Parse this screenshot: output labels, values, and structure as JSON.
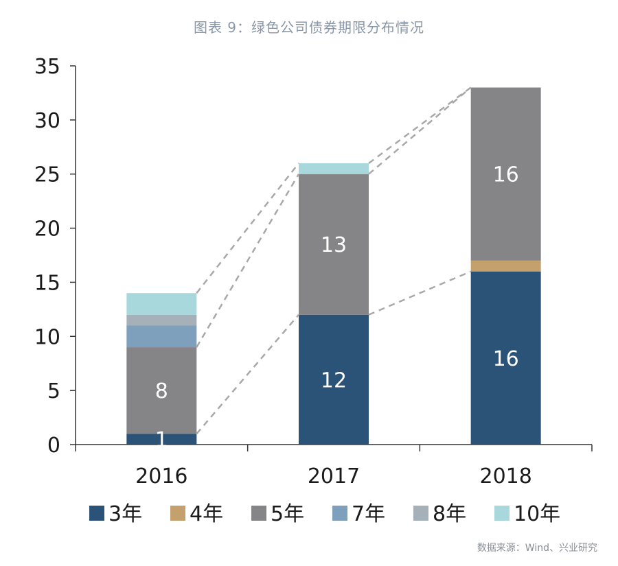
{
  "title": "图表 9：绿色公司债券期限分布情况",
  "source": "数据来源：Wind、兴业研究",
  "colors": {
    "3年": "#2b5377",
    "4年": "#c4a06c",
    "5年": "#858588",
    "7年": "#7ea0bd",
    "8年": "#a6b0b8",
    "10年": "#a9d8dc",
    "connector": "#a8a8a8",
    "axis": "#333333"
  },
  "chart_data": {
    "type": "bar",
    "stacked": true,
    "title": "图表 9：绿色公司债券期限分布情况",
    "categories": [
      "2016",
      "2017",
      "2018"
    ],
    "series": [
      {
        "name": "3年",
        "values": [
          1,
          12,
          16
        ]
      },
      {
        "name": "4年",
        "values": [
          0,
          0,
          1
        ]
      },
      {
        "name": "5年",
        "values": [
          8,
          13,
          16
        ]
      },
      {
        "name": "7年",
        "values": [
          2,
          0,
          0
        ]
      },
      {
        "name": "8年",
        "values": [
          1,
          0,
          0
        ]
      },
      {
        "name": "10年",
        "values": [
          2,
          1,
          0
        ]
      }
    ],
    "data_labels": [
      {
        "category": "2016",
        "series": "3年",
        "text": "1"
      },
      {
        "category": "2016",
        "series": "5年",
        "text": "8"
      },
      {
        "category": "2017",
        "series": "3年",
        "text": "12"
      },
      {
        "category": "2017",
        "series": "5年",
        "text": "13"
      },
      {
        "category": "2018",
        "series": "3年",
        "text": "16"
      },
      {
        "category": "2018",
        "series": "5年",
        "text": "16"
      }
    ],
    "y_ticks": [
      "0",
      "5",
      "10",
      "15",
      "20",
      "25",
      "30",
      "35"
    ],
    "ylim": [
      0,
      35
    ],
    "legend": [
      "3年",
      "4年",
      "5年",
      "7年",
      "8年",
      "10年"
    ],
    "legend_position": "bottom",
    "grid": false
  }
}
